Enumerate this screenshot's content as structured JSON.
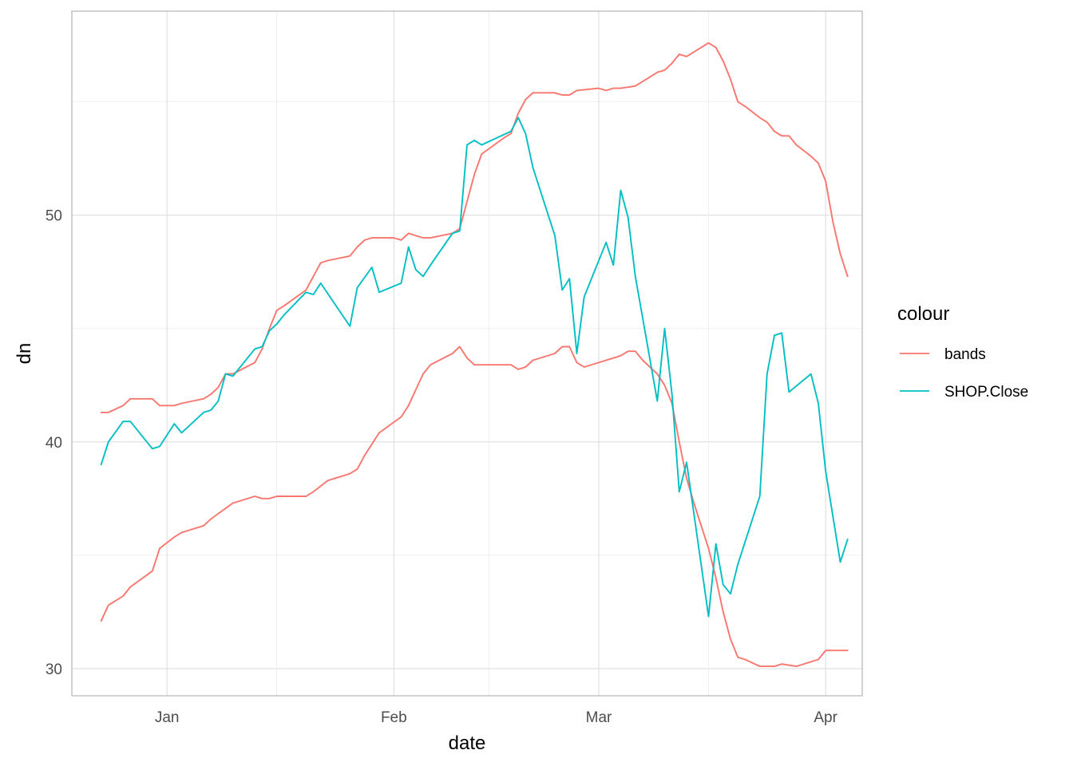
{
  "chart_data": {
    "type": "line",
    "xlabel": "date",
    "ylabel": "dn",
    "x_ticks": [
      "Jan",
      "Feb",
      "Mar",
      "Apr"
    ],
    "y_ticks": [
      "30",
      "40",
      "50"
    ],
    "ylim": [
      28.8,
      59
    ],
    "xlim": [
      "2020-12-19",
      "2021-04-06"
    ],
    "grid": true,
    "legend": {
      "title": "colour",
      "position": "right",
      "entries": [
        {
          "label": "bands",
          "color": "#F8766D"
        },
        {
          "label": "SHOP.Close",
          "color": "#00BFC4"
        }
      ]
    },
    "series": [
      {
        "name": "bands",
        "color": "#F8766D",
        "points": [
          [
            "2020-12-23",
            41.3
          ],
          [
            "2020-12-24",
            41.3
          ],
          [
            "2020-12-26",
            41.6
          ],
          [
            "2020-12-27",
            41.9
          ],
          [
            "2020-12-28",
            41.9
          ],
          [
            "2020-12-30",
            41.9
          ],
          [
            "2020-12-31",
            41.6
          ],
          [
            "2021-01-02",
            41.6
          ],
          [
            "2021-01-03",
            41.7
          ],
          [
            "2021-01-06",
            41.9
          ],
          [
            "2021-01-07",
            42.1
          ],
          [
            "2021-01-08",
            42.4
          ],
          [
            "2021-01-09",
            43.0
          ],
          [
            "2021-01-10",
            43.0
          ],
          [
            "2021-01-13",
            43.5
          ],
          [
            "2021-01-14",
            44.1
          ],
          [
            "2021-01-15",
            45.0
          ],
          [
            "2021-01-16",
            45.8
          ],
          [
            "2021-01-17",
            46.0
          ],
          [
            "2021-01-20",
            46.7
          ],
          [
            "2021-01-21",
            47.3
          ],
          [
            "2021-01-22",
            47.9
          ],
          [
            "2021-01-23",
            48.0
          ],
          [
            "2021-01-26",
            48.2
          ],
          [
            "2021-01-27",
            48.6
          ],
          [
            "2021-01-28",
            48.9
          ],
          [
            "2021-01-29",
            49.0
          ],
          [
            "2021-02-01",
            49.0
          ],
          [
            "2021-02-02",
            48.9
          ],
          [
            "2021-02-03",
            49.2
          ],
          [
            "2021-02-04",
            49.1
          ],
          [
            "2021-02-05",
            49.0
          ],
          [
            "2021-02-06",
            49.0
          ],
          [
            "2021-02-09",
            49.2
          ],
          [
            "2021-02-10",
            49.4
          ],
          [
            "2021-02-11",
            50.6
          ],
          [
            "2021-02-12",
            51.8
          ],
          [
            "2021-02-13",
            52.7
          ],
          [
            "2021-02-16",
            53.4
          ],
          [
            "2021-02-17",
            53.6
          ],
          [
            "2021-02-18",
            54.5
          ],
          [
            "2021-02-19",
            55.1
          ],
          [
            "2021-02-20",
            55.4
          ],
          [
            "2021-02-23",
            55.4
          ],
          [
            "2021-02-24",
            55.3
          ],
          [
            "2021-02-25",
            55.3
          ],
          [
            "2021-02-26",
            55.5
          ],
          [
            "2021-03-01",
            55.6
          ],
          [
            "2021-03-02",
            55.5
          ],
          [
            "2021-03-03",
            55.6
          ],
          [
            "2021-03-04",
            55.6
          ],
          [
            "2021-03-06",
            55.7
          ],
          [
            "2021-03-07",
            55.9
          ],
          [
            "2021-03-08",
            56.1
          ],
          [
            "2021-03-09",
            56.3
          ],
          [
            "2021-03-10",
            56.4
          ],
          [
            "2021-03-11",
            56.7
          ],
          [
            "2021-03-12",
            57.1
          ],
          [
            "2021-03-13",
            57.0
          ],
          [
            "2021-03-16",
            57.6
          ],
          [
            "2021-03-17",
            57.4
          ],
          [
            "2021-03-18",
            56.8
          ],
          [
            "2021-03-19",
            56.0
          ],
          [
            "2021-03-20",
            55.0
          ],
          [
            "2021-03-21",
            54.8
          ],
          [
            "2021-03-23",
            54.3
          ],
          [
            "2021-03-24",
            54.1
          ],
          [
            "2021-03-25",
            53.7
          ],
          [
            "2021-03-26",
            53.5
          ],
          [
            "2021-03-27",
            53.5
          ],
          [
            "2021-03-28",
            53.1
          ],
          [
            "2021-03-30",
            52.6
          ],
          [
            "2021-03-31",
            52.3
          ],
          [
            "2021-04-01",
            51.5
          ],
          [
            "2021-04-02",
            49.7
          ],
          [
            "2021-04-03",
            48.3
          ],
          [
            "2021-04-04",
            47.3
          ]
        ]
      },
      {
        "name": "bands",
        "color": "#F8766D",
        "points": [
          [
            "2020-12-23",
            32.1
          ],
          [
            "2020-12-24",
            32.8
          ],
          [
            "2020-12-26",
            33.2
          ],
          [
            "2020-12-27",
            33.6
          ],
          [
            "2020-12-30",
            34.3
          ],
          [
            "2020-12-31",
            35.3
          ],
          [
            "2021-01-02",
            35.8
          ],
          [
            "2021-01-03",
            36.0
          ],
          [
            "2021-01-06",
            36.3
          ],
          [
            "2021-01-07",
            36.6
          ],
          [
            "2021-01-10",
            37.3
          ],
          [
            "2021-01-13",
            37.6
          ],
          [
            "2021-01-14",
            37.5
          ],
          [
            "2021-01-15",
            37.5
          ],
          [
            "2021-01-16",
            37.6
          ],
          [
            "2021-01-20",
            37.6
          ],
          [
            "2021-01-21",
            37.8
          ],
          [
            "2021-01-23",
            38.3
          ],
          [
            "2021-01-24",
            38.4
          ],
          [
            "2021-01-26",
            38.6
          ],
          [
            "2021-01-27",
            38.8
          ],
          [
            "2021-01-28",
            39.4
          ],
          [
            "2021-01-29",
            39.9
          ],
          [
            "2021-01-30",
            40.4
          ],
          [
            "2021-02-02",
            41.1
          ],
          [
            "2021-02-03",
            41.6
          ],
          [
            "2021-02-04",
            42.3
          ],
          [
            "2021-02-05",
            43.0
          ],
          [
            "2021-02-06",
            43.4
          ],
          [
            "2021-02-09",
            43.9
          ],
          [
            "2021-02-10",
            44.2
          ],
          [
            "2021-02-11",
            43.7
          ],
          [
            "2021-02-12",
            43.4
          ],
          [
            "2021-02-13",
            43.4
          ],
          [
            "2021-02-17",
            43.4
          ],
          [
            "2021-02-18",
            43.2
          ],
          [
            "2021-02-19",
            43.3
          ],
          [
            "2021-02-20",
            43.6
          ],
          [
            "2021-02-23",
            43.9
          ],
          [
            "2021-02-24",
            44.2
          ],
          [
            "2021-02-25",
            44.2
          ],
          [
            "2021-02-26",
            43.5
          ],
          [
            "2021-02-27",
            43.3
          ],
          [
            "2021-03-02",
            43.6
          ],
          [
            "2021-03-03",
            43.7
          ],
          [
            "2021-03-04",
            43.8
          ],
          [
            "2021-03-05",
            44.0
          ],
          [
            "2021-03-06",
            44.0
          ],
          [
            "2021-03-07",
            43.6
          ],
          [
            "2021-03-09",
            43.0
          ],
          [
            "2021-03-10",
            42.5
          ],
          [
            "2021-03-11",
            41.7
          ],
          [
            "2021-03-12",
            40.0
          ],
          [
            "2021-03-13",
            38.4
          ],
          [
            "2021-03-14",
            37.3
          ],
          [
            "2021-03-15",
            36.3
          ],
          [
            "2021-03-16",
            35.3
          ],
          [
            "2021-03-17",
            34.0
          ],
          [
            "2021-03-18",
            32.5
          ],
          [
            "2021-03-19",
            31.3
          ],
          [
            "2021-03-20",
            30.5
          ],
          [
            "2021-03-21",
            30.4
          ],
          [
            "2021-03-23",
            30.1
          ],
          [
            "2021-03-25",
            30.1
          ],
          [
            "2021-03-26",
            30.2
          ],
          [
            "2021-03-28",
            30.1
          ],
          [
            "2021-03-31",
            30.4
          ],
          [
            "2021-04-01",
            30.8
          ],
          [
            "2021-04-04",
            30.8
          ]
        ]
      },
      {
        "name": "SHOP.Close",
        "color": "#00BFC4",
        "points": [
          [
            "2020-12-23",
            39.0
          ],
          [
            "2020-12-24",
            40.0
          ],
          [
            "2020-12-26",
            40.9
          ],
          [
            "2020-12-27",
            40.9
          ],
          [
            "2020-12-30",
            39.7
          ],
          [
            "2020-12-31",
            39.8
          ],
          [
            "2021-01-02",
            40.8
          ],
          [
            "2021-01-03",
            40.4
          ],
          [
            "2021-01-06",
            41.3
          ],
          [
            "2021-01-07",
            41.4
          ],
          [
            "2021-01-08",
            41.8
          ],
          [
            "2021-01-09",
            43.0
          ],
          [
            "2021-01-10",
            42.9
          ],
          [
            "2021-01-13",
            44.1
          ],
          [
            "2021-01-14",
            44.2
          ],
          [
            "2021-01-15",
            44.9
          ],
          [
            "2021-01-16",
            45.2
          ],
          [
            "2021-01-17",
            45.6
          ],
          [
            "2021-01-20",
            46.6
          ],
          [
            "2021-01-21",
            46.5
          ],
          [
            "2021-01-22",
            47.0
          ],
          [
            "2021-01-26",
            45.1
          ],
          [
            "2021-01-27",
            46.8
          ],
          [
            "2021-01-29",
            47.7
          ],
          [
            "2021-01-30",
            46.6
          ],
          [
            "2021-02-02",
            47.0
          ],
          [
            "2021-02-03",
            48.6
          ],
          [
            "2021-02-04",
            47.6
          ],
          [
            "2021-02-05",
            47.3
          ],
          [
            "2021-02-06",
            47.8
          ],
          [
            "2021-02-09",
            49.2
          ],
          [
            "2021-02-10",
            49.3
          ],
          [
            "2021-02-11",
            53.1
          ],
          [
            "2021-02-12",
            53.3
          ],
          [
            "2021-02-13",
            53.1
          ],
          [
            "2021-02-17",
            53.7
          ],
          [
            "2021-02-18",
            54.3
          ],
          [
            "2021-02-19",
            53.6
          ],
          [
            "2021-02-20",
            52.1
          ],
          [
            "2021-02-23",
            49.1
          ],
          [
            "2021-02-24",
            46.7
          ],
          [
            "2021-02-25",
            47.2
          ],
          [
            "2021-02-26",
            43.9
          ],
          [
            "2021-02-27",
            46.4
          ],
          [
            "2021-03-02",
            48.8
          ],
          [
            "2021-03-03",
            47.8
          ],
          [
            "2021-03-04",
            51.1
          ],
          [
            "2021-03-05",
            49.9
          ],
          [
            "2021-03-06",
            47.3
          ],
          [
            "2021-03-09",
            41.8
          ],
          [
            "2021-03-10",
            45.0
          ],
          [
            "2021-03-11",
            42.1
          ],
          [
            "2021-03-12",
            37.8
          ],
          [
            "2021-03-13",
            39.1
          ],
          [
            "2021-03-16",
            32.3
          ],
          [
            "2021-03-17",
            35.5
          ],
          [
            "2021-03-18",
            33.7
          ],
          [
            "2021-03-19",
            33.3
          ],
          [
            "2021-03-20",
            34.6
          ],
          [
            "2021-03-23",
            37.6
          ],
          [
            "2021-03-24",
            43.0
          ],
          [
            "2021-03-25",
            44.7
          ],
          [
            "2021-03-26",
            44.8
          ],
          [
            "2021-03-27",
            42.2
          ],
          [
            "2021-03-30",
            43.0
          ],
          [
            "2021-03-31",
            41.7
          ],
          [
            "2021-04-01",
            38.7
          ],
          [
            "2021-04-03",
            34.7
          ],
          [
            "2021-04-04",
            35.7
          ]
        ]
      }
    ]
  }
}
